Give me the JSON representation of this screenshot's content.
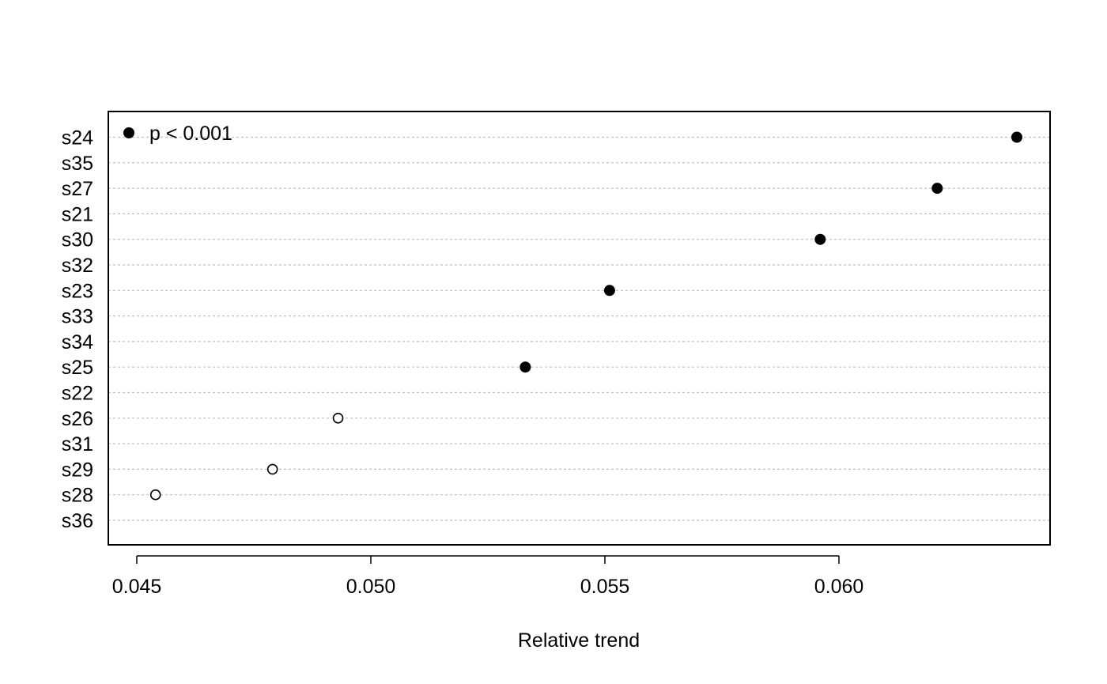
{
  "chart_data": {
    "type": "scatter",
    "title": "",
    "xlabel": "Relative trend",
    "ylabel": "",
    "xlim": [
      0.0444,
      0.0645
    ],
    "grid": "horizontal dotted",
    "categories": [
      "s24",
      "s35",
      "s27",
      "s21",
      "s30",
      "s32",
      "s23",
      "s33",
      "s34",
      "s25",
      "s22",
      "s26",
      "s31",
      "s29",
      "s28",
      "s36"
    ],
    "x_ticks": [
      0.045,
      0.05,
      0.055,
      0.06
    ],
    "x_tick_labels": [
      "0.045",
      "0.050",
      "0.055",
      "0.060"
    ],
    "points": [
      {
        "category": "s24",
        "value": 0.0638,
        "significant": true
      },
      {
        "category": "s27",
        "value": 0.0621,
        "significant": true
      },
      {
        "category": "s30",
        "value": 0.0596,
        "significant": true
      },
      {
        "category": "s23",
        "value": 0.0551,
        "significant": true
      },
      {
        "category": "s25",
        "value": 0.0533,
        "significant": true
      },
      {
        "category": "s26",
        "value": 0.0493,
        "significant": false
      },
      {
        "category": "s29",
        "value": 0.0479,
        "significant": false
      },
      {
        "category": "s28",
        "value": 0.0454,
        "significant": false
      }
    ],
    "legend": {
      "position": "top-left",
      "entries": [
        {
          "label": "p < 0.001",
          "marker": "filled-circle"
        }
      ]
    },
    "colors": {
      "marker": "#000000",
      "grid": "#bebebe",
      "frame": "#000000"
    }
  }
}
